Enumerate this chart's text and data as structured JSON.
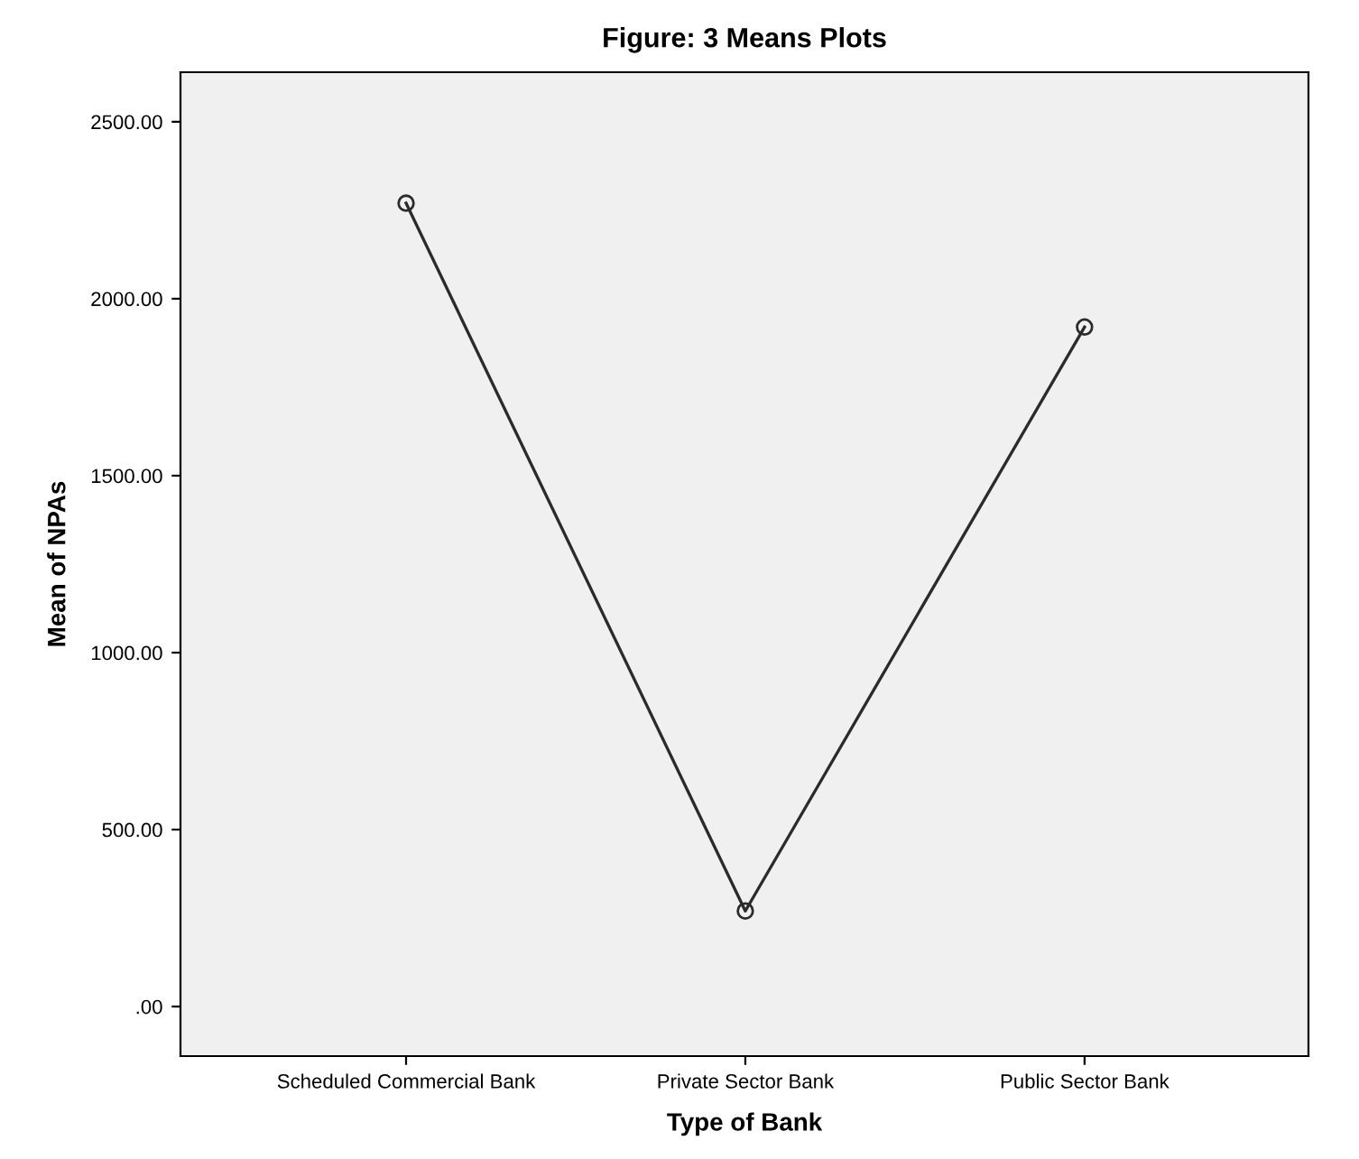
{
  "chart_data": {
    "type": "line",
    "title": "Figure: 3 Means Plots",
    "xlabel": "Type of Bank",
    "ylabel": "Mean of NPAs",
    "categories": [
      "Scheduled Commercial Bank",
      "Private Sector Bank",
      "Public Sector Bank"
    ],
    "series": [
      {
        "color": "#2b2b2b",
        "values": [
          2270,
          270,
          1920
        ]
      }
    ],
    "ylim": [
      -140,
      2640
    ],
    "yticks": [
      {
        "value": 0,
        "label": ".00"
      },
      {
        "value": 500,
        "label": "500.00"
      },
      {
        "value": 1000,
        "label": "1000.00"
      },
      {
        "value": 1500,
        "label": "1500.00"
      },
      {
        "value": 2000,
        "label": "2000.00"
      },
      {
        "value": 2500,
        "label": "2500.00"
      }
    ],
    "marker": "circle",
    "line_style": "solid",
    "grid": false,
    "legend": false
  }
}
